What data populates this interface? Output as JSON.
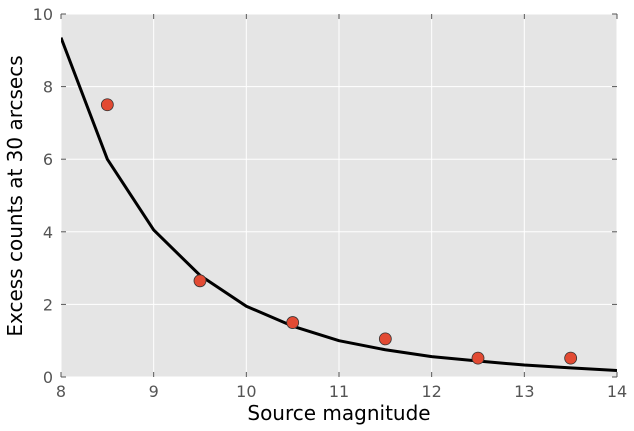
{
  "chart_data": {
    "type": "scatter",
    "title": "",
    "xlabel": "Source magnitude",
    "ylabel": "Excess counts at 30 arcsecs",
    "xlim": [
      8,
      14
    ],
    "ylim": [
      0,
      10
    ],
    "xticks": [
      "8",
      "9",
      "10",
      "11",
      "12",
      "13",
      "14"
    ],
    "yticks": [
      "0",
      "2",
      "4",
      "6",
      "8",
      "10"
    ],
    "grid": true,
    "background": "#e5e5e5",
    "series": [
      {
        "kind": "points",
        "color": "#e24a33",
        "x": [
          8.5,
          9.5,
          10.5,
          11.5,
          12.5,
          13.5
        ],
        "y": [
          7.5,
          2.65,
          1.5,
          1.05,
          0.52,
          0.52
        ]
      },
      {
        "kind": "fit-curve",
        "color": "#000000",
        "x": [
          8.0,
          8.5,
          9.0,
          9.5,
          10.0,
          10.5,
          11.0,
          11.5,
          12.0,
          12.5,
          13.0,
          13.5,
          14.0
        ],
        "y": [
          9.35,
          6.0,
          4.05,
          2.8,
          1.95,
          1.4,
          1.0,
          0.75,
          0.56,
          0.44,
          0.33,
          0.25,
          0.18
        ]
      }
    ]
  }
}
